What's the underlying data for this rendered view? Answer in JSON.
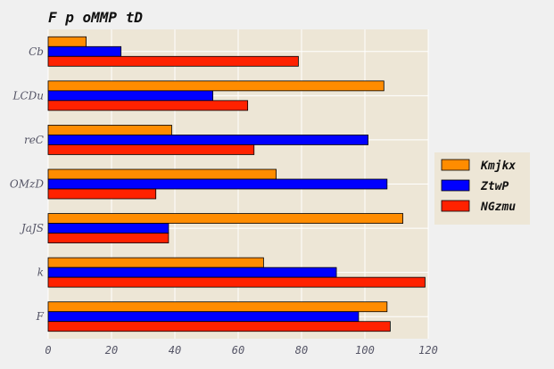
{
  "chart_data": {
    "type": "bar",
    "orientation": "horizontal",
    "title": "F p oMMP tD",
    "xlabel": "",
    "ylabel": "",
    "categories": [
      "F",
      "k",
      "JaJS",
      "OMzD",
      "reC",
      "LCDu",
      "Cb"
    ],
    "series": [
      {
        "name": "Kmjkx",
        "color": "#ff8c00",
        "values": [
          107,
          68,
          112,
          72,
          39,
          106,
          12
        ]
      },
      {
        "name": "ZtwP",
        "color": "#0000ff",
        "values": [
          98,
          91,
          38,
          107,
          101,
          52,
          23
        ]
      },
      {
        "name": "NGzmu",
        "color": "#ff2200",
        "values": [
          108,
          119,
          38,
          34,
          65,
          63,
          79
        ]
      }
    ],
    "xlim": [
      0,
      120
    ],
    "xticks": [
      0,
      20,
      40,
      60,
      80,
      100,
      120
    ],
    "grid": true,
    "legend_position": "right"
  },
  "colors": {
    "figure_background": "#f0f0f0",
    "plot_background": "#ede6d6",
    "grid": "#ffffff",
    "text": "#111111",
    "tick_text": "#555566"
  }
}
